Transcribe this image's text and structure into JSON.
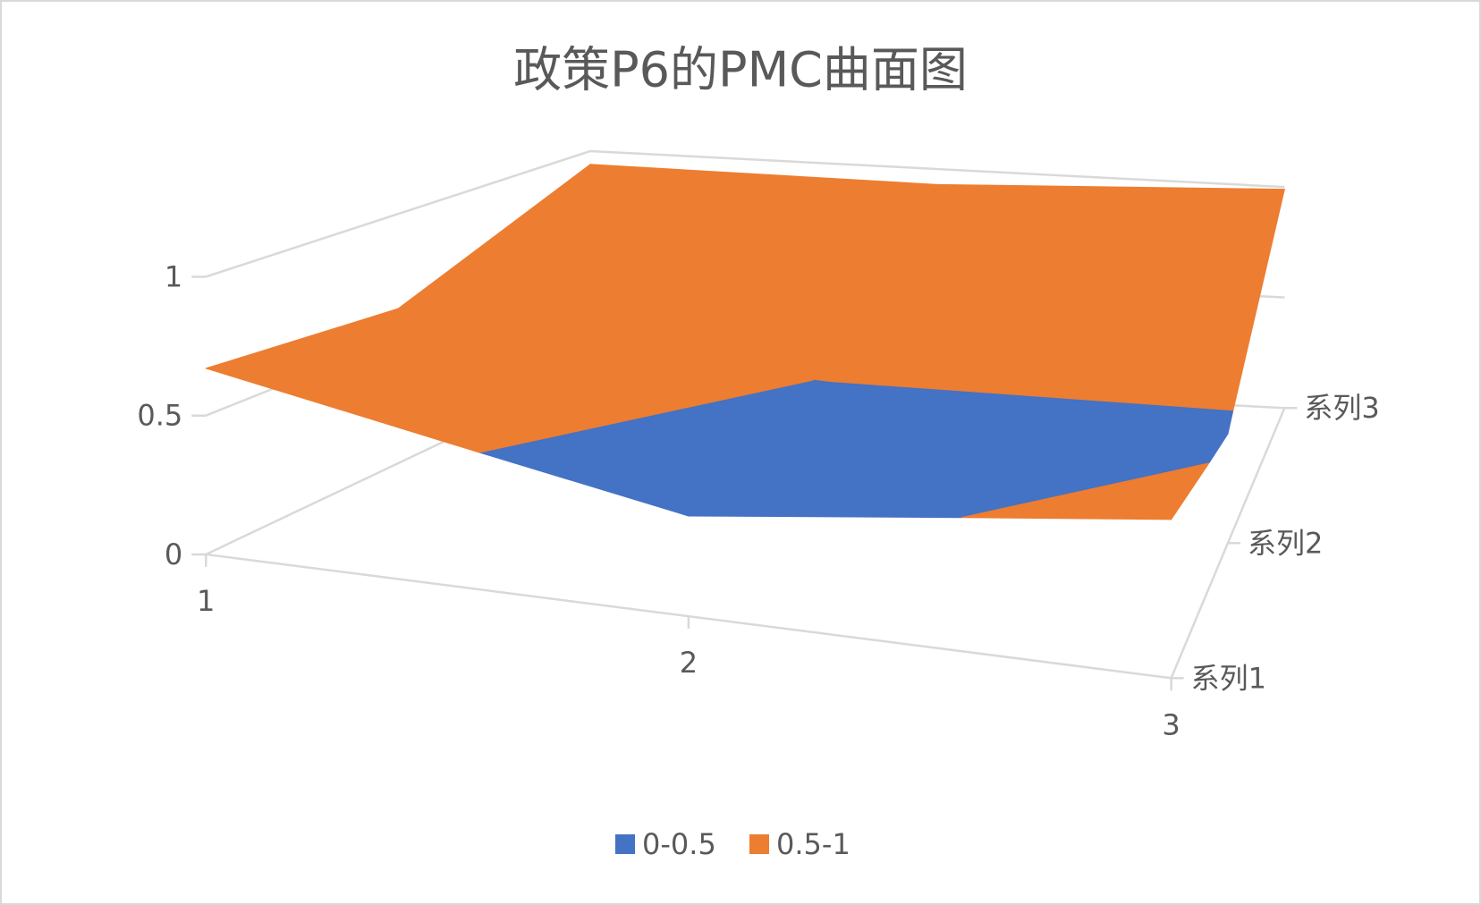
{
  "chart_data": {
    "type": "surface",
    "title": "政策P6的PMC曲面图",
    "categories": [
      "1",
      "2",
      "3"
    ],
    "series": [
      {
        "name": "系列1",
        "values": [
          0.67,
          0.37,
          0.6
        ]
      },
      {
        "name": "系列2",
        "values": [
          0.62,
          0.5,
          0.45
        ]
      },
      {
        "name": "系列3",
        "values": [
          0.94,
          0.93,
          0.99
        ]
      }
    ],
    "zlim": [
      0,
      1
    ],
    "zticks": [
      0,
      0.5,
      1
    ],
    "bands": [
      {
        "name": "0-0.5",
        "color": "#4472c4",
        "range": [
          0,
          0.5
        ]
      },
      {
        "name": "0.5-1",
        "color": "#ed7d31",
        "range": [
          0.5,
          1
        ]
      }
    ],
    "grid": true,
    "legend": "bottom"
  }
}
